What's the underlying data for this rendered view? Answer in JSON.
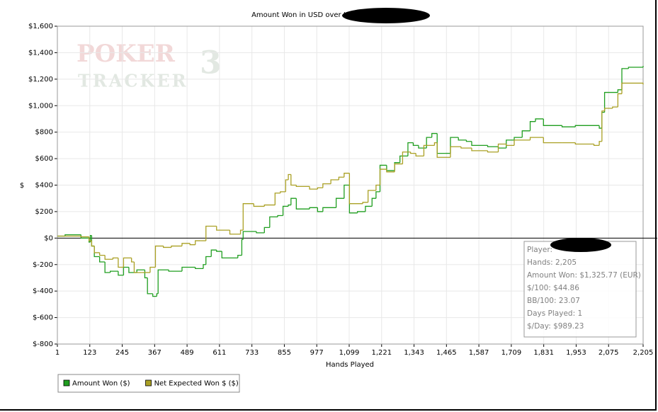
{
  "chart_data": {
    "type": "step-line",
    "title": "Amount Won in USD over Hands Played",
    "x_label": "Hands Played",
    "y_label": "$",
    "watermark": [
      "POKER",
      "TRACKER",
      "3"
    ],
    "xlim": [
      1,
      2205
    ],
    "xticks": [
      1,
      123,
      245,
      367,
      489,
      611,
      733,
      855,
      977,
      {
        "value": 1099,
        "label": "1,099"
      },
      {
        "value": 1221,
        "label": "1,221"
      },
      {
        "value": 1343,
        "label": "1,343"
      },
      {
        "value": 1465,
        "label": "1,465"
      },
      {
        "value": 1587,
        "label": "1,587"
      },
      {
        "value": 1709,
        "label": "1,709"
      },
      {
        "value": 1831,
        "label": "1,831"
      },
      {
        "value": 1953,
        "label": "1,953"
      },
      {
        "value": 2075,
        "label": "2,075"
      },
      {
        "value": 2205,
        "label": "2,205"
      }
    ],
    "ylim": [
      -800,
      1600
    ],
    "yticks": [
      {
        "value": -800,
        "label": "$-800"
      },
      {
        "value": -600,
        "label": "$-600"
      },
      {
        "value": -400,
        "label": "$-400"
      },
      {
        "value": -200,
        "label": "$-200"
      },
      {
        "value": 0,
        "label": "$0"
      },
      {
        "value": 200,
        "label": "$200"
      },
      {
        "value": 400,
        "label": "$400"
      },
      {
        "value": 600,
        "label": "$600"
      },
      {
        "value": 800,
        "label": "$800"
      },
      {
        "value": 1000,
        "label": "$1,000"
      },
      {
        "value": 1200,
        "label": "$1,200"
      },
      {
        "value": 1400,
        "label": "$1,400"
      },
      {
        "value": 1600,
        "label": "$1,600"
      }
    ],
    "grid": true,
    "legend": "bottom-left",
    "series": [
      {
        "name": "Amount Won ($)",
        "color": "#1f9e1f",
        "x": [
          1,
          30,
          90,
          120,
          125,
          130,
          140,
          160,
          180,
          200,
          230,
          250,
          270,
          300,
          330,
          340,
          360,
          375,
          380,
          420,
          470,
          520,
          550,
          560,
          580,
          600,
          620,
          680,
          695,
          700,
          750,
          780,
          800,
          830,
          850,
          870,
          880,
          900,
          950,
          980,
          1000,
          1050,
          1080,
          1100,
          1130,
          1160,
          1185,
          1200,
          1215,
          1240,
          1270,
          1290,
          1320,
          1340,
          1360,
          1390,
          1410,
          1430,
          1460,
          1480,
          1510,
          1540,
          1560,
          1620,
          1660,
          1690,
          1720,
          1750,
          1780,
          1800,
          1830,
          1900,
          1950,
          2040,
          2050,
          2060,
          2110,
          2125,
          2150,
          2205
        ],
        "values": [
          15,
          25,
          0,
          -30,
          20,
          -60,
          -140,
          -180,
          -260,
          -250,
          -280,
          -220,
          -260,
          -240,
          -300,
          -420,
          -440,
          -420,
          -240,
          -250,
          -220,
          -230,
          -200,
          -140,
          -90,
          -100,
          -150,
          -130,
          -10,
          50,
          40,
          80,
          160,
          170,
          240,
          250,
          300,
          220,
          230,
          200,
          230,
          300,
          400,
          190,
          200,
          240,
          300,
          350,
          550,
          510,
          570,
          620,
          720,
          700,
          680,
          760,
          790,
          640,
          640,
          760,
          740,
          730,
          700,
          690,
          680,
          740,
          760,
          810,
          880,
          900,
          850,
          840,
          850,
          830,
          950,
          1100,
          1120,
          1280,
          1290,
          1300
        ]
      },
      {
        "name": "Net Expected Won $ ($)",
        "color": "#aaa024",
        "x": [
          1,
          90,
          120,
          130,
          140,
          160,
          180,
          210,
          230,
          250,
          280,
          290,
          320,
          350,
          370,
          400,
          430,
          470,
          500,
          520,
          540,
          560,
          600,
          650,
          690,
          700,
          740,
          780,
          820,
          840,
          860,
          870,
          880,
          900,
          950,
          980,
          1000,
          1030,
          1060,
          1080,
          1100,
          1150,
          1170,
          1200,
          1215,
          1240,
          1270,
          1300,
          1330,
          1350,
          1380,
          1420,
          1430,
          1480,
          1520,
          1560,
          1620,
          1660,
          1690,
          1720,
          1780,
          1830,
          1900,
          1950,
          2020,
          2040,
          2050,
          2060,
          2090,
          2110,
          2125,
          2205
        ],
        "values": [
          15,
          10,
          -20,
          -60,
          -110,
          -130,
          -160,
          -150,
          -220,
          -150,
          -180,
          -260,
          -260,
          -220,
          -60,
          -70,
          -60,
          -40,
          -50,
          -20,
          -20,
          90,
          60,
          30,
          60,
          260,
          240,
          250,
          340,
          350,
          440,
          480,
          400,
          390,
          370,
          380,
          410,
          440,
          460,
          490,
          260,
          270,
          360,
          400,
          520,
          500,
          560,
          650,
          640,
          620,
          700,
          720,
          610,
          690,
          680,
          660,
          650,
          710,
          700,
          740,
          760,
          720,
          720,
          710,
          700,
          730,
          960,
          980,
          990,
          1090,
          1170,
          1160
        ]
      }
    ],
    "info_box": [
      "Player:",
      "Hands: 2,205",
      "Amount Won: $1,325.77 (EUR)",
      "$/100: $44.86",
      "BB/100: 23.07",
      "Days Played: 1",
      "$/Day: $989.23"
    ]
  }
}
